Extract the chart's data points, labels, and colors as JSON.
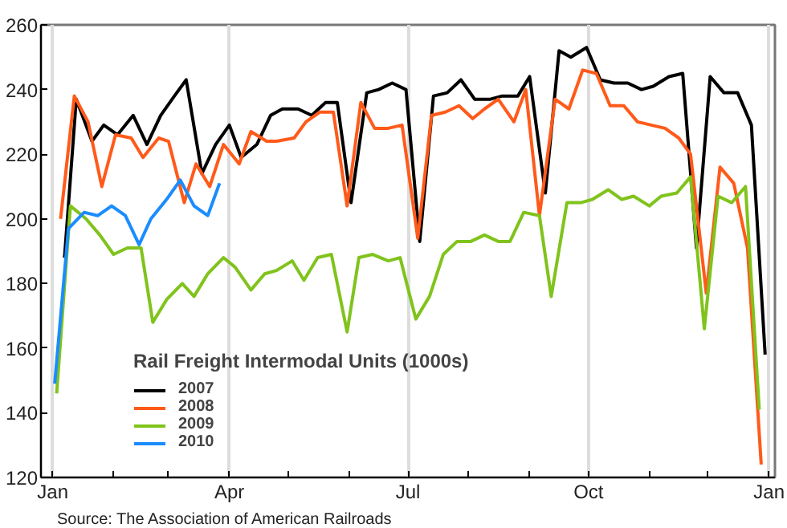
{
  "chart_data": {
    "type": "line",
    "legend_title": "Rail Freight Intermodal Units (1000s)",
    "annotations": [
      "Source: The Association of American Railroads"
    ],
    "xlim": [
      "2006-12-26",
      "2008-01-04"
    ],
    "ylim": [
      120,
      260
    ],
    "xticks": [
      {
        "value": "2007-01-01",
        "label": "Jan"
      },
      {
        "value": "2007-02-01",
        "label": null
      },
      {
        "value": "2007-03-01",
        "label": null
      },
      {
        "value": "2007-04-01",
        "label": "Apr"
      },
      {
        "value": "2007-05-01",
        "label": null
      },
      {
        "value": "2007-06-01",
        "label": null
      },
      {
        "value": "2007-07-01",
        "label": "Jul"
      },
      {
        "value": "2007-08-01",
        "label": null
      },
      {
        "value": "2007-09-01",
        "label": null
      },
      {
        "value": "2007-10-01",
        "label": "Oct"
      },
      {
        "value": "2007-11-01",
        "label": null
      },
      {
        "value": "2007-12-01",
        "label": null
      },
      {
        "value": "2008-01-01",
        "label": "Jan"
      }
    ],
    "yticks": [
      120,
      140,
      160,
      180,
      200,
      220,
      240,
      260
    ],
    "grid": "x",
    "legend": "bottom left",
    "marker": "none",
    "line_style": "solid",
    "series": [
      {
        "name": "2007",
        "color": "#000000",
        "x": [
          "2007-01-07",
          "2007-01-13",
          "2007-01-21",
          "2007-01-27",
          "2007-02-03",
          "2007-02-11",
          "2007-02-18",
          "2007-02-25",
          "2007-03-04",
          "2007-03-10",
          "2007-03-18",
          "2007-03-25",
          "2007-04-01",
          "2007-04-07",
          "2007-04-15",
          "2007-04-22",
          "2007-04-28",
          "2007-05-06",
          "2007-05-13",
          "2007-05-20",
          "2007-05-26",
          "2007-06-02",
          "2007-06-10",
          "2007-06-16",
          "2007-06-23",
          "2007-06-30",
          "2007-07-07",
          "2007-07-14",
          "2007-07-21",
          "2007-07-28",
          "2007-08-04",
          "2007-08-12",
          "2007-08-18",
          "2007-08-26",
          "2007-09-01",
          "2007-09-09",
          "2007-09-16",
          "2007-09-22",
          "2007-09-30",
          "2007-10-07",
          "2007-10-14",
          "2007-10-21",
          "2007-10-28",
          "2007-11-03",
          "2007-11-11",
          "2007-11-18",
          "2007-11-25",
          "2007-12-02",
          "2007-12-09",
          "2007-12-16",
          "2007-12-23",
          "2007-12-30"
        ],
        "values": [
          188,
          237,
          224,
          229,
          226,
          232,
          223,
          232,
          238,
          243,
          214,
          223,
          229,
          219,
          223,
          232,
          234,
          234,
          232,
          236,
          236,
          205,
          239,
          240,
          242,
          240,
          193,
          238,
          239,
          243,
          237,
          237,
          238,
          238,
          244,
          208,
          252,
          250,
          253,
          243,
          242,
          242,
          240,
          241,
          244,
          245,
          191,
          244,
          239,
          239,
          229,
          158
        ]
      },
      {
        "name": "2008",
        "color": "#ff5a1a",
        "x": [
          "2007-01-05",
          "2007-01-12",
          "2007-01-19",
          "2007-01-26",
          "2007-02-02",
          "2007-02-10",
          "2007-02-16",
          "2007-02-24",
          "2007-03-01",
          "2007-03-09",
          "2007-03-15",
          "2007-03-22",
          "2007-03-29",
          "2007-04-06",
          "2007-04-12",
          "2007-04-20",
          "2007-04-25",
          "2007-05-04",
          "2007-05-10",
          "2007-05-17",
          "2007-05-24",
          "2007-05-31",
          "2007-06-07",
          "2007-06-14",
          "2007-06-21",
          "2007-06-28",
          "2007-07-06",
          "2007-07-13",
          "2007-07-20",
          "2007-07-27",
          "2007-08-03",
          "2007-08-09",
          "2007-08-16",
          "2007-08-24",
          "2007-08-30",
          "2007-09-06",
          "2007-09-14",
          "2007-09-21",
          "2007-09-28",
          "2007-10-05",
          "2007-10-12",
          "2007-10-19",
          "2007-10-26",
          "2007-11-02",
          "2007-11-09",
          "2007-11-16",
          "2007-11-22",
          "2007-11-30",
          "2007-12-07",
          "2007-12-14",
          "2007-12-21",
          "2007-12-28"
        ],
        "values": [
          200,
          238,
          230,
          210,
          226,
          225,
          219,
          225,
          224,
          205,
          217,
          210,
          223,
          217,
          227,
          224,
          224,
          225,
          230,
          233,
          233,
          204,
          236,
          228,
          228,
          229,
          194,
          232,
          233,
          235,
          231,
          234,
          237,
          230,
          240,
          201,
          237,
          234,
          246,
          245,
          235,
          235,
          230,
          229,
          228,
          225,
          220,
          177,
          216,
          211,
          191,
          124
        ]
      },
      {
        "name": "2009",
        "color": "#80c31c",
        "x": [
          "2007-01-03",
          "2007-01-10",
          "2007-01-18",
          "2007-01-25",
          "2007-02-01",
          "2007-02-08",
          "2007-02-15",
          "2007-02-21",
          "2007-02-28",
          "2007-03-08",
          "2007-03-14",
          "2007-03-21",
          "2007-03-29",
          "2007-04-04",
          "2007-04-12",
          "2007-04-19",
          "2007-04-25",
          "2007-05-03",
          "2007-05-09",
          "2007-05-16",
          "2007-05-23",
          "2007-05-31",
          "2007-06-06",
          "2007-06-13",
          "2007-06-21",
          "2007-06-27",
          "2007-07-05",
          "2007-07-12",
          "2007-07-19",
          "2007-07-26",
          "2007-08-02",
          "2007-08-09",
          "2007-08-16",
          "2007-08-22",
          "2007-08-29",
          "2007-09-06",
          "2007-09-12",
          "2007-09-20",
          "2007-09-27",
          "2007-10-03",
          "2007-10-11",
          "2007-10-18",
          "2007-10-24",
          "2007-11-01",
          "2007-11-07",
          "2007-11-15",
          "2007-11-22",
          "2007-11-29",
          "2007-12-06",
          "2007-12-13",
          "2007-12-20",
          "2007-12-27"
        ],
        "values": [
          146,
          204,
          200,
          195,
          189,
          191,
          191,
          168,
          175,
          180,
          176,
          183,
          188,
          185,
          178,
          183,
          184,
          187,
          181,
          188,
          189,
          165,
          188,
          189,
          187,
          188,
          169,
          176,
          189,
          193,
          193,
          195,
          193,
          193,
          202,
          201,
          176,
          205,
          205,
          206,
          209,
          206,
          207,
          204,
          207,
          208,
          213,
          166,
          207,
          205,
          210,
          141
        ]
      },
      {
        "name": "2010",
        "color": "#1a8cff",
        "x": [
          "2007-01-02",
          "2007-01-09",
          "2007-01-17",
          "2007-01-24",
          "2007-01-31",
          "2007-02-07",
          "2007-02-14",
          "2007-02-20",
          "2007-02-28",
          "2007-03-07",
          "2007-03-14",
          "2007-03-21",
          "2007-03-27"
        ],
        "values": [
          149,
          197,
          202,
          201,
          204,
          201,
          192,
          200,
          206,
          212,
          204,
          201,
          211
        ]
      }
    ]
  }
}
